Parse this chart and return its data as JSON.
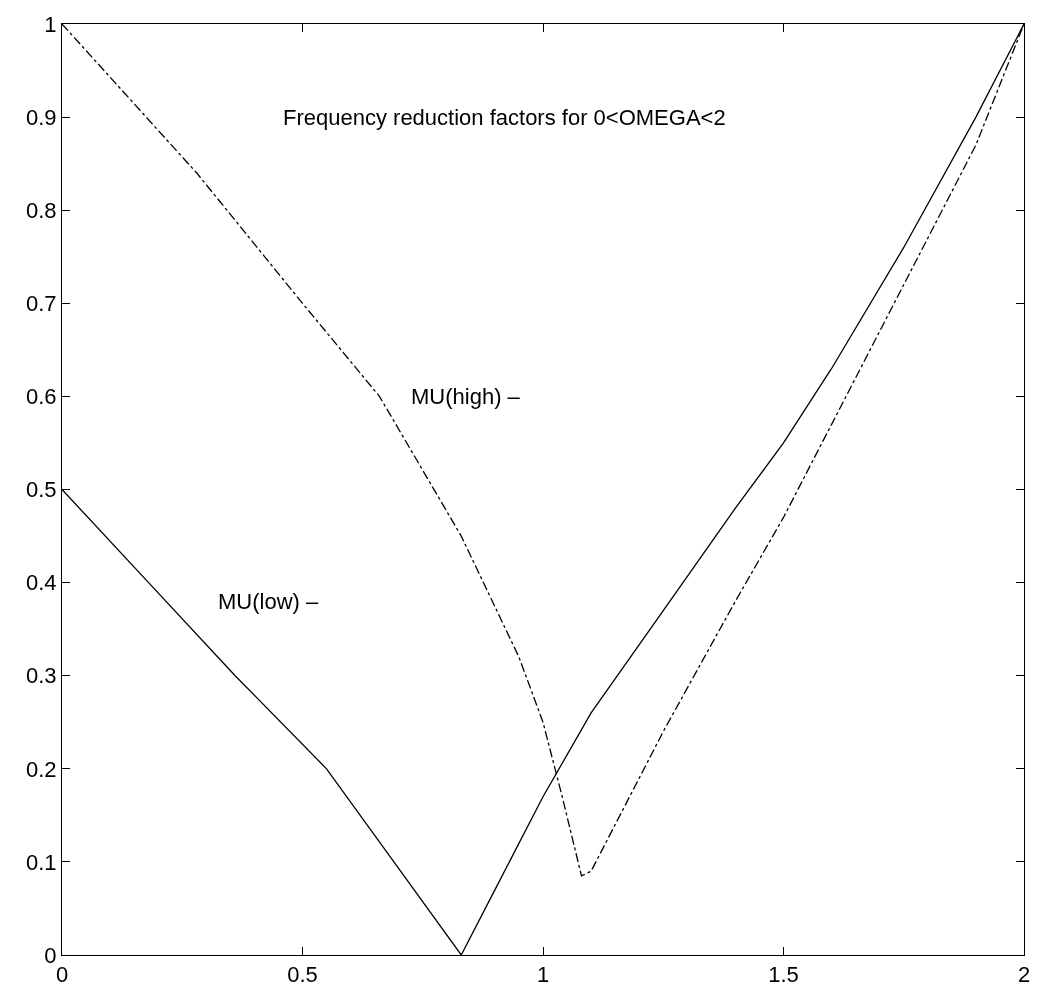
{
  "chart_data": {
    "type": "line",
    "title": "Frequency reduction factors for 0<OMEGA<2",
    "series": [
      {
        "x": [
          0,
          0.18,
          0.36,
          0.55,
          0.69,
          0.83,
          0.9,
          1.0,
          1.1,
          1.25,
          1.4,
          1.5,
          1.6,
          1.75,
          1.9,
          2
        ],
        "values": [
          0.5,
          0.4,
          0.3,
          0.2,
          0.1,
          0,
          0.07,
          0.17,
          0.26,
          0.37,
          0.48,
          0.55,
          0.63,
          0.76,
          0.9,
          1
        ],
        "color": "#000000",
        "line_style": "solid"
      },
      {
        "x": [
          0,
          0.28,
          0.5,
          0.66,
          0.83,
          0.95,
          1.0,
          1.04,
          1.08,
          1.1,
          1.25,
          1.4,
          1.5,
          1.6,
          1.75,
          1.9,
          2
        ],
        "values": [
          1,
          0.84,
          0.7,
          0.6,
          0.45,
          0.32,
          0.25,
          0.17,
          0.085,
          0.09,
          0.24,
          0.38,
          0.47,
          0.57,
          0.72,
          0.87,
          1
        ],
        "color": "#000000",
        "line_style": "dashdot"
      }
    ],
    "annotations": [
      "MU(high) –",
      "MU(low) –"
    ],
    "xlim": [
      0,
      2
    ],
    "xticks": [
      0,
      0.5,
      1,
      1.5,
      2
    ],
    "ylim": [
      0,
      1
    ],
    "yticks": [
      0,
      0.1,
      0.2,
      0.3,
      0.4,
      0.5,
      0.6,
      0.7,
      0.8,
      0.9,
      1
    ],
    "marker": "none"
  }
}
